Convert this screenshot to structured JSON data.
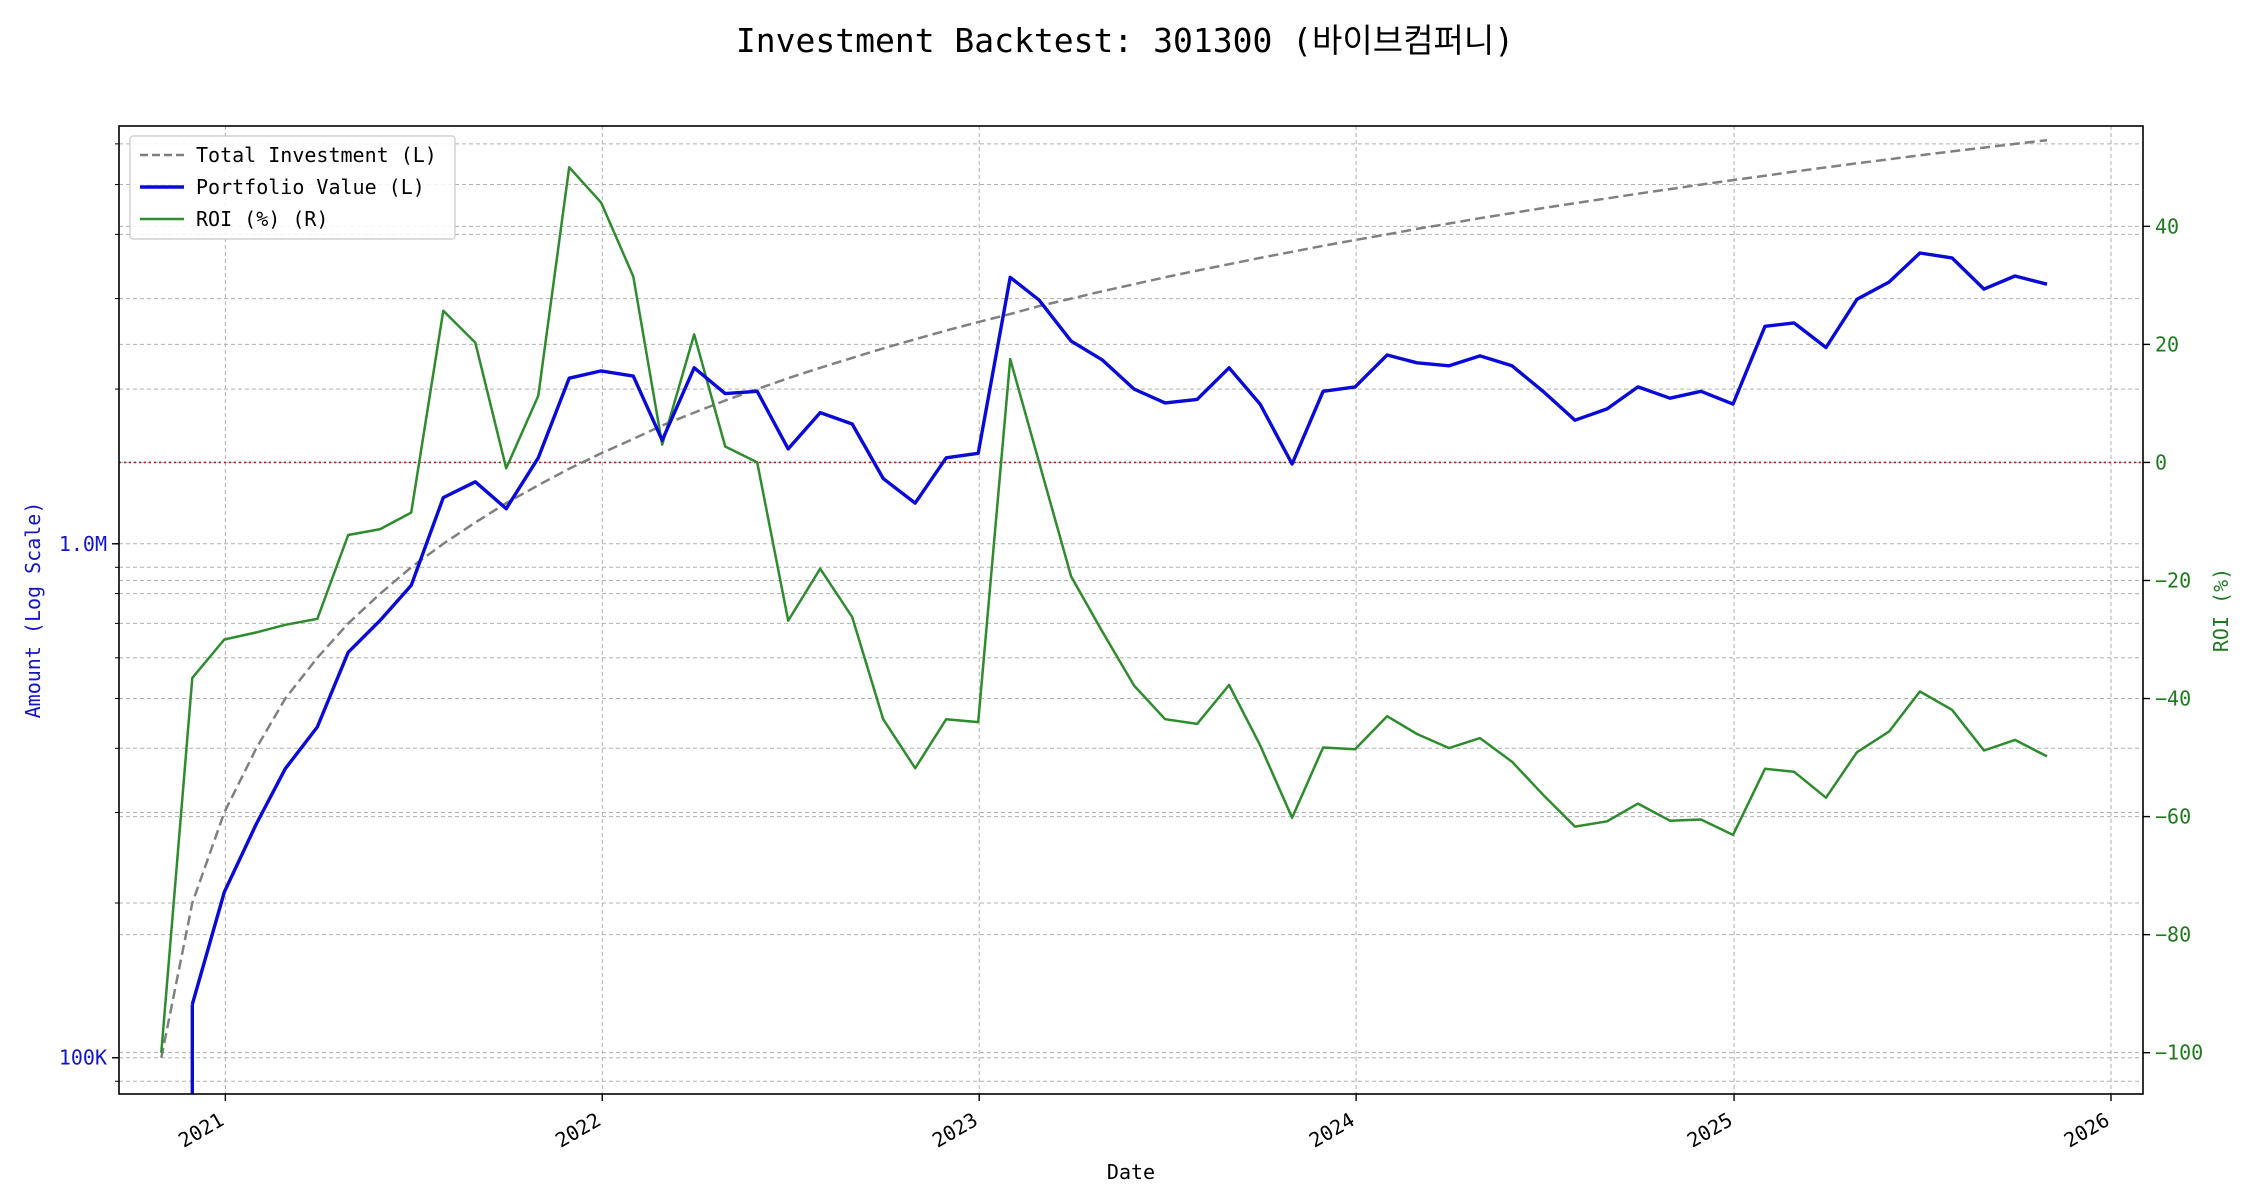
{
  "chart_data": {
    "type": "line",
    "title": "Investment Backtest: 301300 (바이브컴퍼니)",
    "xlabel": "Date",
    "ylabel_left": "Amount (Log Scale)",
    "ylabel_right": "ROI (%)",
    "left_axis": {
      "scale": "log",
      "range": [
        85000,
        6500000
      ],
      "ticks": [
        100000,
        1000000
      ],
      "tick_labels": [
        "100K",
        "1.0M"
      ],
      "color": "#1515c8"
    },
    "right_axis": {
      "range": [
        -107,
        57
      ],
      "ticks": [
        -100,
        -80,
        -60,
        -40,
        -20,
        0,
        20,
        40
      ],
      "color": "#1f7a1f"
    },
    "x_axis": {
      "range": [
        "2020-09-20",
        "2026-02-01"
      ],
      "ticks": [
        "2021-01-01",
        "2022-01-01",
        "2023-01-01",
        "2024-01-01",
        "2025-01-01",
        "2026-01-01"
      ],
      "tick_labels": [
        "2021",
        "2022",
        "2023",
        "2024",
        "2025",
        "2026"
      ]
    },
    "grid": true,
    "legend_position": "top-left",
    "zero_line": {
      "axis": "right",
      "value": 0,
      "color": "#b22222",
      "style": "dotted"
    },
    "dates": [
      "2020-10-31",
      "2020-11-30",
      "2020-12-31",
      "2021-01-31",
      "2021-02-28",
      "2021-03-31",
      "2021-04-30",
      "2021-05-31",
      "2021-06-30",
      "2021-07-31",
      "2021-08-31",
      "2021-09-30",
      "2021-10-31",
      "2021-11-30",
      "2021-12-31",
      "2022-01-31",
      "2022-02-28",
      "2022-03-31",
      "2022-04-30",
      "2022-05-31",
      "2022-06-30",
      "2022-07-31",
      "2022-08-31",
      "2022-09-30",
      "2022-10-31",
      "2022-11-30",
      "2022-12-31",
      "2023-01-31",
      "2023-02-28",
      "2023-03-31",
      "2023-04-30",
      "2023-05-31",
      "2023-06-30",
      "2023-07-31",
      "2023-08-31",
      "2023-09-30",
      "2023-10-31",
      "2023-11-30",
      "2023-12-31",
      "2024-01-31",
      "2024-02-29",
      "2024-03-31",
      "2024-04-30",
      "2024-05-31",
      "2024-06-30",
      "2024-07-31",
      "2024-08-31",
      "2024-09-30",
      "2024-10-31",
      "2024-11-30",
      "2024-12-31",
      "2025-01-31",
      "2025-02-28",
      "2025-03-31",
      "2025-04-30",
      "2025-05-31",
      "2025-06-30",
      "2025-07-31",
      "2025-08-31",
      "2025-09-30",
      "2025-10-31"
    ],
    "series": [
      {
        "name": "Total Investment (L)",
        "axis": "left",
        "color": "#808080",
        "style": "dashed",
        "values": [
          100000,
          200000,
          300000,
          400000,
          500000,
          600000,
          700000,
          800000,
          900000,
          1000000,
          1100000,
          1200000,
          1300000,
          1400000,
          1500000,
          1600000,
          1700000,
          1800000,
          1900000,
          2000000,
          2100000,
          2200000,
          2300000,
          2400000,
          2500000,
          2600000,
          2700000,
          2800000,
          2900000,
          3000000,
          3100000,
          3200000,
          3300000,
          3400000,
          3500000,
          3600000,
          3700000,
          3800000,
          3900000,
          4000000,
          4100000,
          4200000,
          4300000,
          4400000,
          4500000,
          4600000,
          4700000,
          4800000,
          4900000,
          5000000,
          5100000,
          5200000,
          5300000,
          5400000,
          5500000,
          5600000,
          5700000,
          5800000,
          5900000,
          6000000,
          6100000
        ]
      },
      {
        "name": "Portfolio Value (L)",
        "axis": "left",
        "color": "#0a0ad8",
        "style": "solid",
        "values": [
          null,
          127000,
          210000,
          285000,
          365000,
          440000,
          615000,
          710000,
          830000,
          1230000,
          1320000,
          1170000,
          1470000,
          2100000,
          2170000,
          2120000,
          1590000,
          2200000,
          1960000,
          1980000,
          1530000,
          1800000,
          1710000,
          1340000,
          1200000,
          1470000,
          1500000,
          3300000,
          2980000,
          2480000,
          2280000,
          2000000,
          1880000,
          1910000,
          2200000,
          1870000,
          1430000,
          1980000,
          2020000,
          2330000,
          2250000,
          2220000,
          2320000,
          2220000,
          1980000,
          1740000,
          1830000,
          2020000,
          1920000,
          1980000,
          1870000,
          2650000,
          2690000,
          2410000,
          2990000,
          3230000,
          3680000,
          3600000,
          3130000,
          3320000,
          3200000
        ]
      },
      {
        "name": "ROI (%) (R)",
        "axis": "right",
        "color": "#2e8b2e",
        "style": "solid",
        "values": [
          -100,
          -36.5,
          -30,
          -28.8,
          -27.5,
          -26.5,
          -12.3,
          -11.3,
          -8.5,
          25.7,
          20.3,
          -1,
          11.3,
          50,
          44,
          31.5,
          3,
          21.7,
          2.7,
          0,
          -26.8,
          -18,
          -26.2,
          -43.5,
          -51.8,
          -43.5,
          -44,
          17.5,
          0,
          -19.3,
          -28.6,
          -37.8,
          -43.5,
          -44.3,
          -37.7,
          -47.9,
          -60.2,
          -48.3,
          -48.6,
          -43,
          -46,
          -48.4,
          -46.7,
          -50.7,
          -56.3,
          -61.7,
          -60.8,
          -57.8,
          -60.7,
          -60.5,
          -63.1,
          -51.9,
          -52.4,
          -56.8,
          -49.1,
          -45.6,
          -38.8,
          -41.9,
          -48.8,
          -47,
          -49.8
        ]
      }
    ]
  }
}
